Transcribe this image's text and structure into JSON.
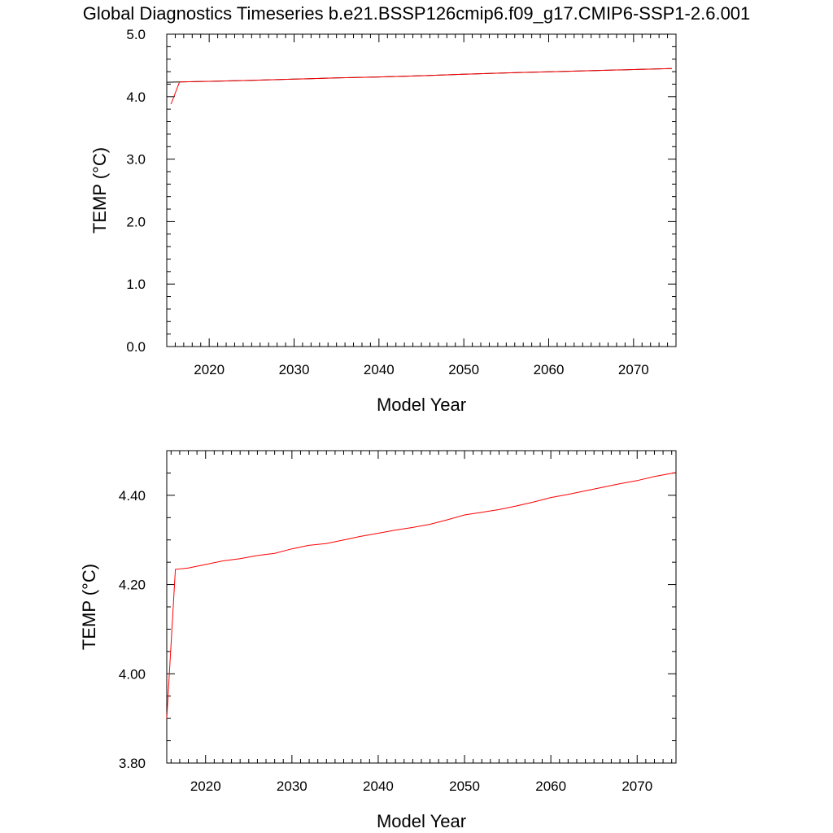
{
  "title": "Global Diagnostics Timeseries b.e21.BSSP126cmip6.f09_g17.CMIP6-SSP1-2.6.001",
  "colors": {
    "series": "#ff0000",
    "axes": "#000000",
    "background": "#ffffff"
  },
  "chart_data": [
    {
      "type": "line",
      "xlabel": "Model Year",
      "ylabel": "TEMP (°C)",
      "xlim": [
        2015,
        2075
      ],
      "ylim": [
        0,
        5
      ],
      "grid": false,
      "xticks": [
        2020,
        2030,
        2040,
        2050,
        2060,
        2070
      ],
      "xtick_labels": [
        "2020",
        "2030",
        "2040",
        "2050",
        "2060",
        "2070"
      ],
      "yticks": [
        0,
        1,
        2,
        3,
        4,
        5
      ],
      "ytick_labels": [
        "0.0",
        "1.0",
        "2.0",
        "3.0",
        "4.0",
        "5.0"
      ],
      "series": [
        {
          "color": "#ff0000",
          "x": [
            2015.5,
            2016.5,
            2020,
            2025,
            2030,
            2035,
            2040,
            2045,
            2050,
            2055,
            2060,
            2065,
            2070,
            2074.5
          ],
          "y": [
            3.88,
            4.235,
            4.245,
            4.262,
            4.28,
            4.3,
            4.315,
            4.335,
            4.36,
            4.38,
            4.398,
            4.415,
            4.433,
            4.45
          ]
        },
        {
          "color": "#000000",
          "x": [
            2015,
            2016.5,
            2020,
            2025,
            2030,
            2035,
            2040,
            2045,
            2050,
            2055,
            2060,
            2065,
            2070,
            2074.5
          ],
          "y": [
            4.23,
            4.235,
            4.245,
            4.262,
            4.28,
            4.3,
            4.315,
            4.335,
            4.36,
            4.38,
            4.398,
            4.415,
            4.433,
            4.45
          ]
        }
      ]
    },
    {
      "type": "line",
      "xlabel": "Model Year",
      "ylabel": "TEMP (°C)",
      "xlim": [
        2015.5,
        2074.5
      ],
      "ylim": [
        3.8,
        4.5
      ],
      "grid": false,
      "xticks": [
        2020,
        2030,
        2040,
        2050,
        2060,
        2070
      ],
      "xtick_labels": [
        "2020",
        "2030",
        "2040",
        "2050",
        "2060",
        "2070"
      ],
      "yticks": [
        3.8,
        4.0,
        4.2,
        4.4
      ],
      "ytick_labels": [
        "3.80",
        "4.00",
        "4.20",
        "4.40"
      ],
      "series": [
        {
          "color": "#ff0000",
          "x": [
            2015.5,
            2016.5,
            2018,
            2020,
            2022,
            2024,
            2026,
            2028,
            2030,
            2032,
            2034,
            2036,
            2038,
            2040,
            2042,
            2044,
            2046,
            2048,
            2050,
            2052,
            2054,
            2056,
            2058,
            2060,
            2062,
            2064,
            2066,
            2068,
            2070,
            2072,
            2074.5
          ],
          "y": [
            3.9,
            4.234,
            4.237,
            4.245,
            4.253,
            4.258,
            4.265,
            4.27,
            4.28,
            4.288,
            4.292,
            4.3,
            4.308,
            4.315,
            4.322,
            4.328,
            4.335,
            4.345,
            4.356,
            4.362,
            4.368,
            4.376,
            4.385,
            4.395,
            4.402,
            4.41,
            4.418,
            4.426,
            4.433,
            4.442,
            4.451
          ]
        }
      ]
    }
  ]
}
